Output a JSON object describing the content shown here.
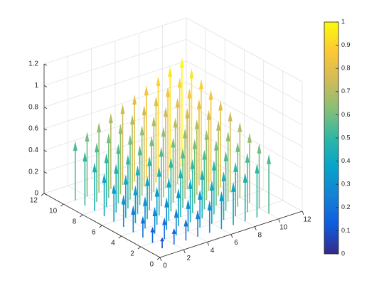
{
  "chart_data": {
    "type": "quiver3",
    "x": [
      1,
      2,
      3,
      4,
      5,
      6,
      7,
      8,
      9,
      10
    ],
    "y": [
      1,
      2,
      3,
      4,
      5,
      6,
      7,
      8,
      9,
      10
    ],
    "values": [
      [
        0.1,
        0.15,
        0.2,
        0.25,
        0.3,
        0.35,
        0.4,
        0.45,
        0.5,
        0.55
      ],
      [
        0.15,
        0.2,
        0.25,
        0.3,
        0.35,
        0.4,
        0.45,
        0.5,
        0.55,
        0.6
      ],
      [
        0.2,
        0.25,
        0.3,
        0.35,
        0.4,
        0.45,
        0.5,
        0.55,
        0.6,
        0.65
      ],
      [
        0.25,
        0.3,
        0.35,
        0.4,
        0.45,
        0.5,
        0.55,
        0.6,
        0.65,
        0.7
      ],
      [
        0.3,
        0.35,
        0.4,
        0.45,
        0.5,
        0.55,
        0.6,
        0.65,
        0.7,
        0.75
      ],
      [
        0.35,
        0.4,
        0.45,
        0.5,
        0.55,
        0.6,
        0.65,
        0.7,
        0.75,
        0.8
      ],
      [
        0.4,
        0.45,
        0.5,
        0.55,
        0.6,
        0.65,
        0.7,
        0.75,
        0.8,
        0.85
      ],
      [
        0.45,
        0.5,
        0.55,
        0.6,
        0.65,
        0.7,
        0.75,
        0.8,
        0.85,
        0.9
      ],
      [
        0.5,
        0.55,
        0.6,
        0.65,
        0.7,
        0.75,
        0.8,
        0.85,
        0.9,
        0.95
      ],
      [
        0.55,
        0.6,
        0.65,
        0.7,
        0.75,
        0.8,
        0.85,
        0.9,
        0.95,
        1.0
      ]
    ],
    "xlim": [
      0,
      12
    ],
    "xticks": [
      0,
      2,
      4,
      6,
      8,
      10,
      12
    ],
    "ylim": [
      0,
      12
    ],
    "yticks": [
      0,
      2,
      4,
      6,
      8,
      10,
      12
    ],
    "zlim": [
      0,
      1.2
    ],
    "zticks": [
      0,
      0.2,
      0.4,
      0.6,
      0.8,
      1,
      1.2
    ],
    "grid": true,
    "colormap": [
      "#352a87",
      "#0f5cdd",
      "#1481d6",
      "#06a4ca",
      "#2eb7a4",
      "#87bf77",
      "#d1bb59",
      "#fec832",
      "#f9fb0e"
    ],
    "colorbar": {
      "lim": [
        0,
        1
      ],
      "ticks": [
        0,
        0.1,
        0.2,
        0.3,
        0.4,
        0.5,
        0.6,
        0.7,
        0.8,
        0.9,
        1
      ]
    }
  }
}
